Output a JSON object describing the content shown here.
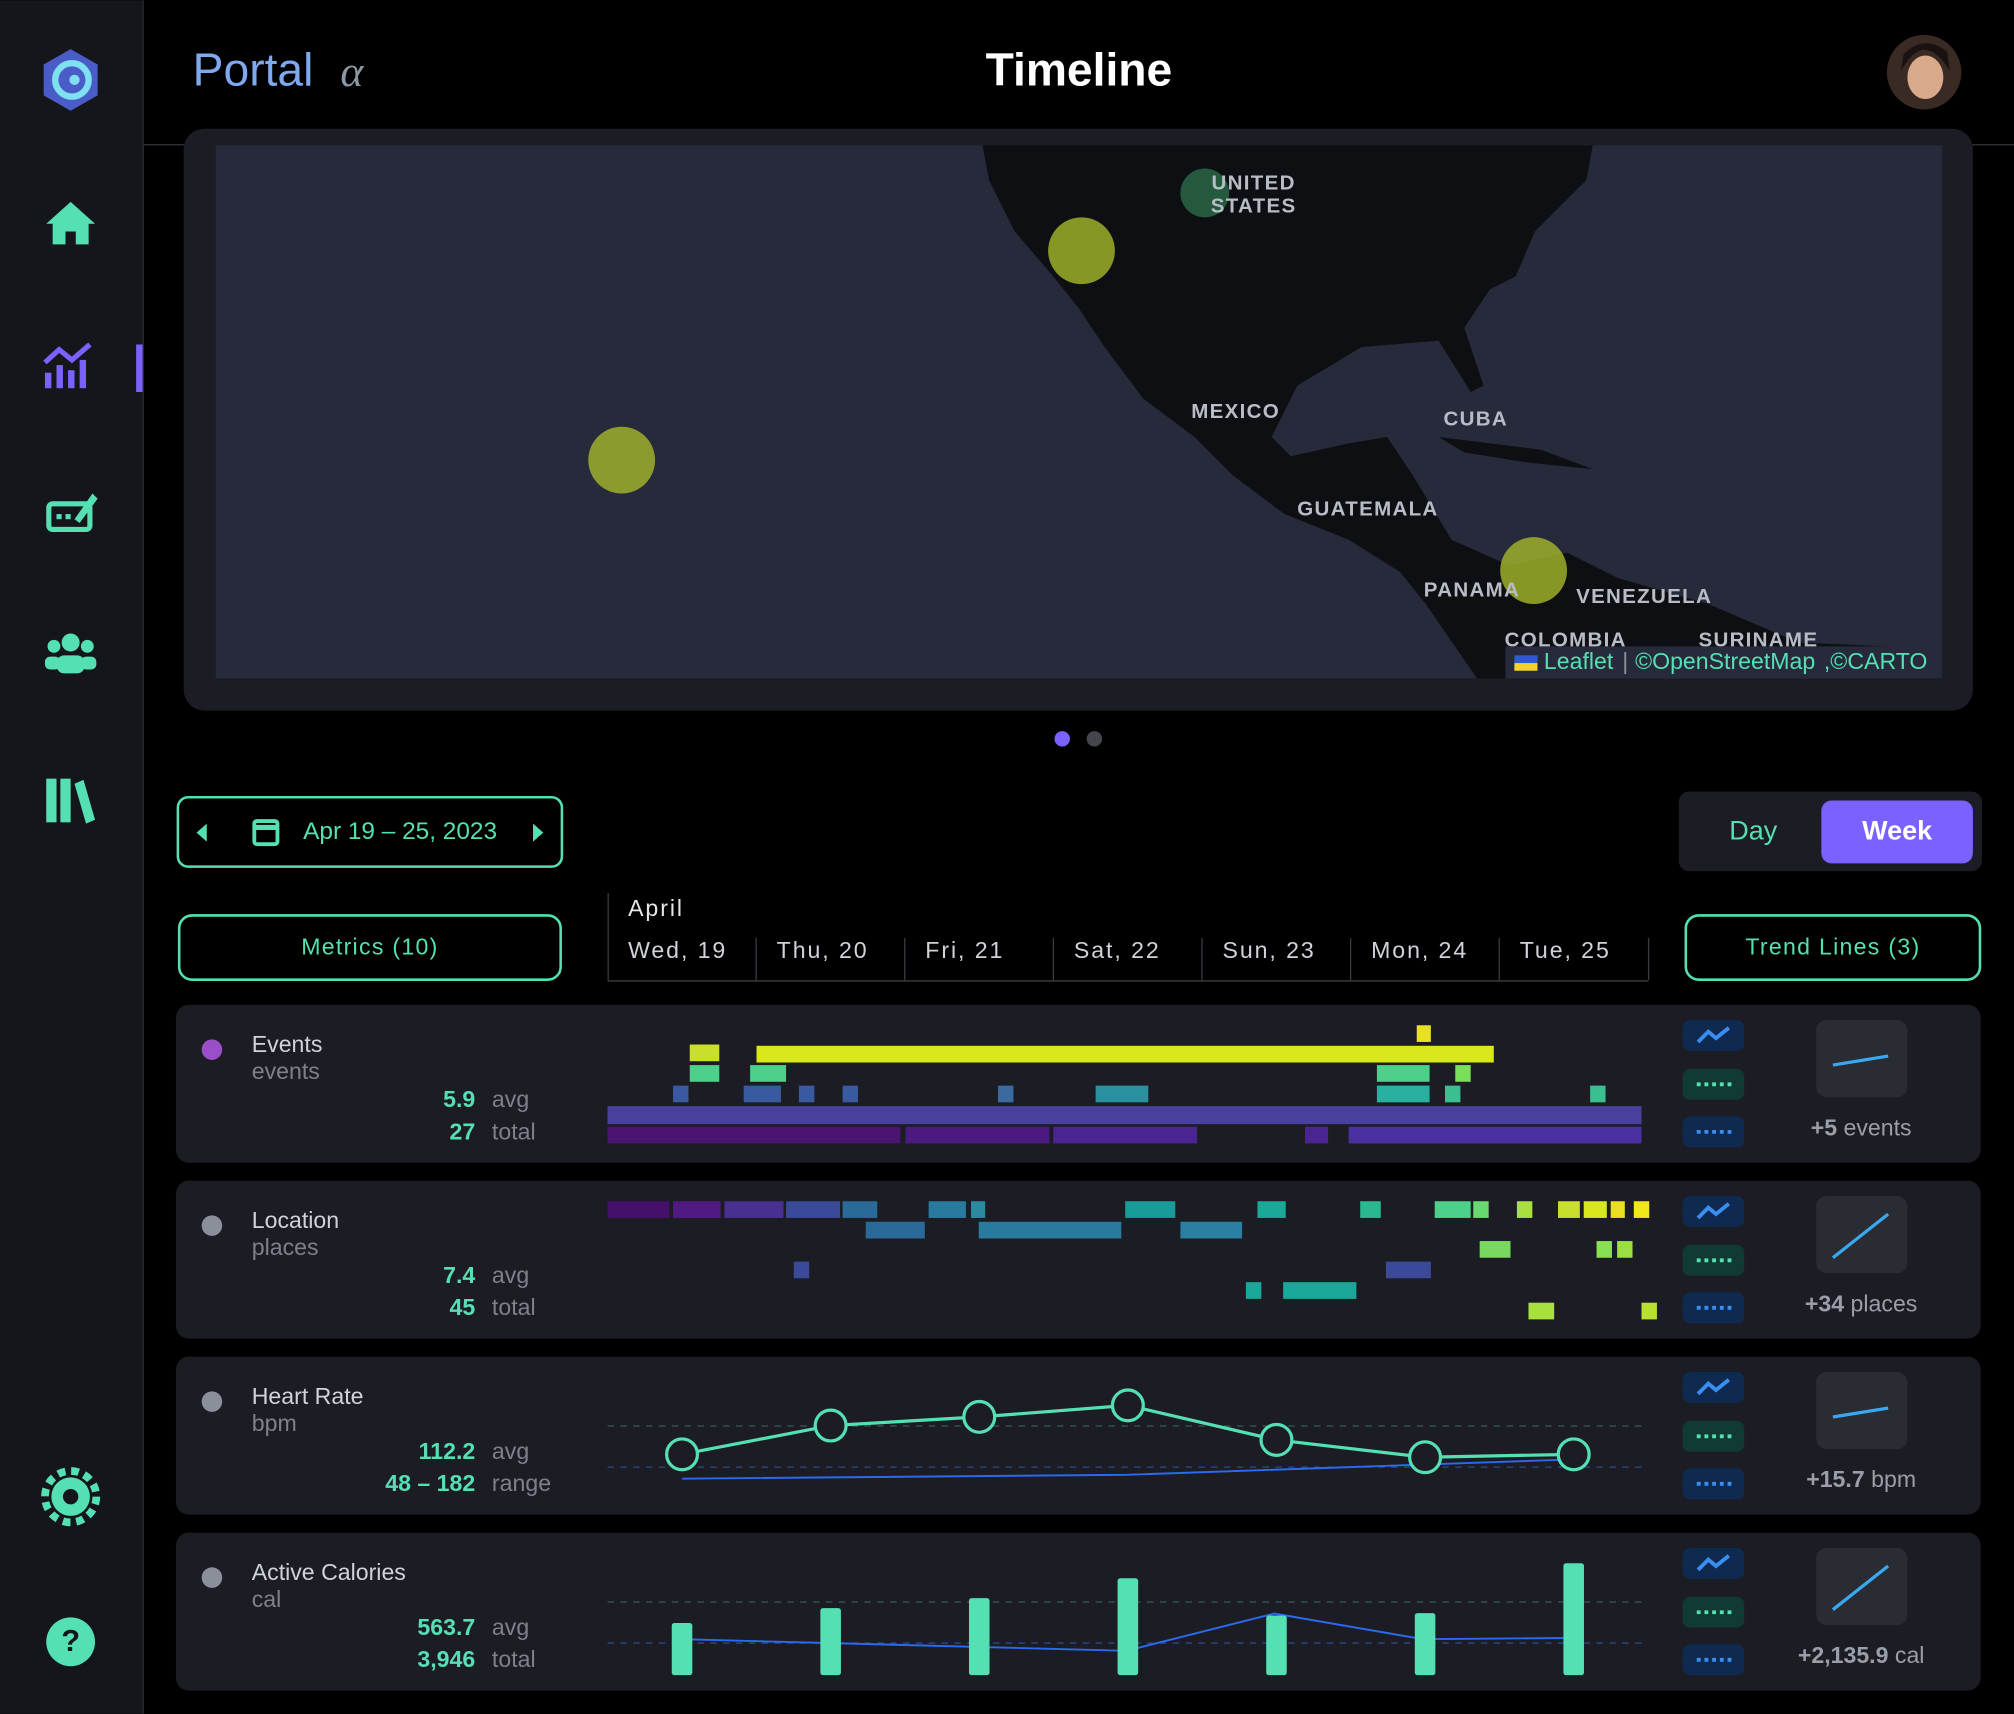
{
  "header": {
    "brand": "Portal",
    "brand_suffix": "α",
    "title": "Timeline"
  },
  "map": {
    "labels": [
      "UNITED",
      "STATES",
      "MEXICO",
      "CUBA",
      "GUATEMALA",
      "PANAMA",
      "VENEZUELA",
      "COLOMBIA",
      "SURINAME"
    ],
    "attribution": {
      "leaflet": "Leaflet",
      "separator": "|",
      "osm": "©OpenStreetMap",
      "carto": ",©CARTO"
    }
  },
  "controls": {
    "date_range": "Apr 19 – 25, 2023",
    "day": "Day",
    "week": "Week",
    "metrics_button": "Metrics (10)",
    "trend_button": "Trend Lines (3)",
    "month": "April",
    "days": [
      "Wed, 19",
      "Thu, 20",
      "Fri, 21",
      "Sat, 22",
      "Sun, 23",
      "Mon, 24",
      "Tue, 25"
    ]
  },
  "metrics": [
    {
      "name": "Events",
      "unit": "events",
      "avg": "5.9",
      "avg_label": "avg",
      "second": "27",
      "second_label": "total",
      "trend": "+5",
      "trend_unit": "events"
    },
    {
      "name": "Location",
      "unit": "places",
      "avg": "7.4",
      "avg_label": "avg",
      "second": "45",
      "second_label": "total",
      "trend": "+34",
      "trend_unit": "places"
    },
    {
      "name": "Heart Rate",
      "unit": "bpm",
      "avg": "112.2",
      "avg_label": "avg",
      "second": "48 – 182",
      "second_label": "range",
      "trend": "+15.7",
      "trend_unit": "bpm",
      "values": [
        106,
        116,
        119,
        123,
        111,
        105,
        106
      ],
      "ylim": [
        98,
        131
      ]
    },
    {
      "name": "Active Calories",
      "unit": "cal",
      "avg": "563.7",
      "avg_label": "avg",
      "second": "3,946",
      "second_label": "total",
      "trend": "+2,135.9",
      "trend_unit": "cal",
      "values": [
        391,
        502,
        577,
        726,
        447,
        465,
        838
      ],
      "ylim": [
        0,
        875
      ]
    }
  ]
}
